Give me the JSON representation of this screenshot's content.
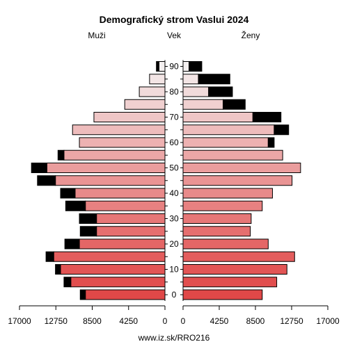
{
  "chart_data": {
    "type": "bar",
    "title": "Demografický strom Vaslui 2024",
    "left_label": "Muži",
    "center_label": "Vek",
    "right_label": "Ženy",
    "footer": "www.iz.sk/RRO216",
    "xlim": [
      0,
      17000
    ],
    "x_ticks": [
      0,
      4250,
      8500,
      12750,
      17000
    ],
    "x_tick_labels": [
      "0",
      "4250",
      "8500",
      "12750",
      "17000"
    ],
    "age_labels": [
      "0",
      "10",
      "20",
      "30",
      "40",
      "50",
      "60",
      "70",
      "80",
      "90"
    ],
    "age_groups": [
      "0-4",
      "5-9",
      "10-14",
      "15-19",
      "20-24",
      "25-29",
      "30-34",
      "35-39",
      "40-44",
      "45-49",
      "50-54",
      "55-59",
      "60-64",
      "65-69",
      "70-74",
      "75-79",
      "80-84",
      "85-89",
      "90+"
    ],
    "male_base": [
      9300,
      11000,
      12200,
      13000,
      10000,
      8000,
      8000,
      9300,
      10500,
      12800,
      13800,
      11800,
      10000,
      10800,
      8300,
      4700,
      3000,
      1800,
      700
    ],
    "male_excess": [
      600,
      800,
      600,
      900,
      1700,
      1900,
      2000,
      2300,
      1700,
      2100,
      1800,
      700,
      0,
      0,
      0,
      0,
      0,
      0,
      300
    ],
    "female_base": [
      9300,
      11000,
      12200,
      13100,
      10000,
      7900,
      8000,
      9300,
      10500,
      12800,
      13800,
      11700,
      10000,
      10700,
      8200,
      4700,
      3000,
      1800,
      700
    ],
    "female_excess": [
      0,
      0,
      0,
      0,
      0,
      0,
      0,
      0,
      0,
      0,
      0,
      0,
      700,
      1700,
      3300,
      2600,
      2800,
      3700,
      1500
    ],
    "colors": {
      "young": "#e04848",
      "old": "#f4f0f0",
      "excess": "#000000"
    }
  }
}
